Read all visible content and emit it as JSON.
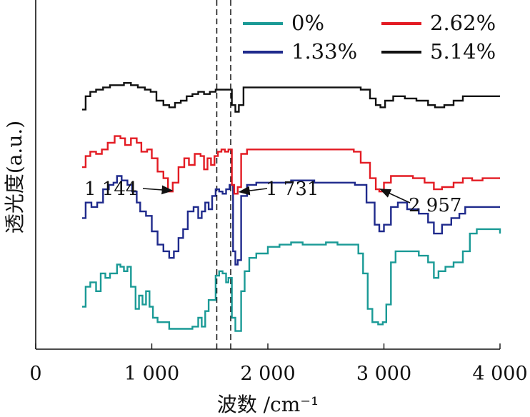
{
  "chart_data": {
    "type": "line",
    "title": "",
    "xlabel": "波数 /cm⁻¹",
    "ylabel": "透光度(a.u.)",
    "xlim": [
      0,
      4000
    ],
    "x_ticks": [
      0,
      1000,
      2000,
      3000,
      4000
    ],
    "x_tick_labels": [
      "0",
      "1 000",
      "2 000",
      "3 000",
      "4 000"
    ],
    "grid": false,
    "legend_position": "top",
    "reference_lines": [
      1560,
      1680
    ],
    "series": [
      {
        "name": "0%",
        "color": "#1a9a96",
        "offset": 0,
        "points": [
          [
            400,
            0.15
          ],
          [
            430,
            0.24
          ],
          [
            470,
            0.26
          ],
          [
            520,
            0.22
          ],
          [
            560,
            0.3
          ],
          [
            600,
            0.28
          ],
          [
            640,
            0.3
          ],
          [
            700,
            0.34
          ],
          [
            730,
            0.33
          ],
          [
            760,
            0.31
          ],
          [
            790,
            0.33
          ],
          [
            820,
            0.24
          ],
          [
            860,
            0.14
          ],
          [
            890,
            0.2
          ],
          [
            920,
            0.16
          ],
          [
            950,
            0.22
          ],
          [
            980,
            0.15
          ],
          [
            1010,
            0.1
          ],
          [
            1050,
            0.08
          ],
          [
            1100,
            0.08
          ],
          [
            1150,
            0.05
          ],
          [
            1200,
            0.05
          ],
          [
            1250,
            0.05
          ],
          [
            1300,
            0.05
          ],
          [
            1350,
            0.06
          ],
          [
            1400,
            0.1
          ],
          [
            1430,
            0.06
          ],
          [
            1460,
            0.13
          ],
          [
            1490,
            0.18
          ],
          [
            1520,
            0.18
          ],
          [
            1550,
            0.29
          ],
          [
            1580,
            0.31
          ],
          [
            1610,
            0.3
          ],
          [
            1640,
            0.26
          ],
          [
            1660,
            0.28
          ],
          [
            1690,
            0.1
          ],
          [
            1720,
            0.04
          ],
          [
            1740,
            0.04
          ],
          [
            1770,
            0.22
          ],
          [
            1800,
            0.31
          ],
          [
            1840,
            0.37
          ],
          [
            1900,
            0.39
          ],
          [
            2000,
            0.42
          ],
          [
            2100,
            0.43
          ],
          [
            2200,
            0.44
          ],
          [
            2300,
            0.43
          ],
          [
            2400,
            0.43
          ],
          [
            2500,
            0.44
          ],
          [
            2600,
            0.43
          ],
          [
            2700,
            0.43
          ],
          [
            2780,
            0.39
          ],
          [
            2820,
            0.3
          ],
          [
            2860,
            0.14
          ],
          [
            2900,
            0.08
          ],
          [
            2950,
            0.07
          ],
          [
            2990,
            0.08
          ],
          [
            3020,
            0.16
          ],
          [
            3060,
            0.35
          ],
          [
            3100,
            0.4
          ],
          [
            3200,
            0.4
          ],
          [
            3300,
            0.38
          ],
          [
            3380,
            0.35
          ],
          [
            3430,
            0.28
          ],
          [
            3470,
            0.31
          ],
          [
            3530,
            0.33
          ],
          [
            3600,
            0.35
          ],
          [
            3680,
            0.4
          ],
          [
            3740,
            0.48
          ],
          [
            3800,
            0.5
          ],
          [
            3900,
            0.5
          ],
          [
            4000,
            0.48
          ]
        ]
      },
      {
        "name": "1.33%",
        "color": "#1f2a8c",
        "offset": 1,
        "points": [
          [
            400,
            0.55
          ],
          [
            430,
            0.62
          ],
          [
            480,
            0.6
          ],
          [
            530,
            0.62
          ],
          [
            580,
            0.68
          ],
          [
            630,
            0.7
          ],
          [
            670,
            0.71
          ],
          [
            700,
            0.74
          ],
          [
            740,
            0.72
          ],
          [
            790,
            0.7
          ],
          [
            830,
            0.67
          ],
          [
            870,
            0.62
          ],
          [
            900,
            0.58
          ],
          [
            950,
            0.56
          ],
          [
            1000,
            0.49
          ],
          [
            1050,
            0.43
          ],
          [
            1100,
            0.4
          ],
          [
            1150,
            0.37
          ],
          [
            1190,
            0.4
          ],
          [
            1230,
            0.46
          ],
          [
            1270,
            0.5
          ],
          [
            1310,
            0.58
          ],
          [
            1360,
            0.6
          ],
          [
            1400,
            0.55
          ],
          [
            1430,
            0.58
          ],
          [
            1460,
            0.62
          ],
          [
            1490,
            0.59
          ],
          [
            1520,
            0.65
          ],
          [
            1550,
            0.68
          ],
          [
            1580,
            0.67
          ],
          [
            1610,
            0.66
          ],
          [
            1640,
            0.68
          ],
          [
            1670,
            0.7
          ],
          [
            1700,
            0.4
          ],
          [
            1720,
            0.34
          ],
          [
            1740,
            0.36
          ],
          [
            1770,
            0.65
          ],
          [
            1820,
            0.7
          ],
          [
            1900,
            0.71
          ],
          [
            2000,
            0.71
          ],
          [
            2200,
            0.72
          ],
          [
            2400,
            0.71
          ],
          [
            2600,
            0.71
          ],
          [
            2750,
            0.7
          ],
          [
            2850,
            0.62
          ],
          [
            2920,
            0.52
          ],
          [
            2960,
            0.49
          ],
          [
            3000,
            0.52
          ],
          [
            3060,
            0.6
          ],
          [
            3120,
            0.62
          ],
          [
            3200,
            0.59
          ],
          [
            3300,
            0.57
          ],
          [
            3380,
            0.53
          ],
          [
            3430,
            0.48
          ],
          [
            3500,
            0.52
          ],
          [
            3580,
            0.55
          ],
          [
            3650,
            0.57
          ],
          [
            3700,
            0.6
          ],
          [
            3800,
            0.6
          ],
          [
            3900,
            0.6
          ],
          [
            4000,
            0.6
          ]
        ]
      },
      {
        "name": "2.62%",
        "color": "#e31b23",
        "offset": 2,
        "points": [
          [
            400,
            0.78
          ],
          [
            430,
            0.83
          ],
          [
            470,
            0.85
          ],
          [
            520,
            0.84
          ],
          [
            570,
            0.86
          ],
          [
            620,
            0.89
          ],
          [
            680,
            0.92
          ],
          [
            730,
            0.91
          ],
          [
            770,
            0.88
          ],
          [
            820,
            0.91
          ],
          [
            870,
            0.89
          ],
          [
            910,
            0.85
          ],
          [
            960,
            0.86
          ],
          [
            1000,
            0.82
          ],
          [
            1050,
            0.76
          ],
          [
            1100,
            0.73
          ],
          [
            1140,
            0.67
          ],
          [
            1180,
            0.71
          ],
          [
            1230,
            0.78
          ],
          [
            1280,
            0.82
          ],
          [
            1320,
            0.79
          ],
          [
            1370,
            0.84
          ],
          [
            1420,
            0.83
          ],
          [
            1450,
            0.77
          ],
          [
            1480,
            0.82
          ],
          [
            1510,
            0.79
          ],
          [
            1540,
            0.83
          ],
          [
            1570,
            0.85
          ],
          [
            1600,
            0.86
          ],
          [
            1630,
            0.85
          ],
          [
            1660,
            0.86
          ],
          [
            1690,
            0.7
          ],
          [
            1710,
            0.66
          ],
          [
            1740,
            0.69
          ],
          [
            1770,
            0.84
          ],
          [
            1820,
            0.86
          ],
          [
            1900,
            0.86
          ],
          [
            2000,
            0.86
          ],
          [
            2200,
            0.86
          ],
          [
            2400,
            0.86
          ],
          [
            2600,
            0.86
          ],
          [
            2740,
            0.85
          ],
          [
            2800,
            0.8
          ],
          [
            2880,
            0.73
          ],
          [
            2930,
            0.68
          ],
          [
            2960,
            0.67
          ],
          [
            3000,
            0.71
          ],
          [
            3060,
            0.74
          ],
          [
            3150,
            0.74
          ],
          [
            3250,
            0.73
          ],
          [
            3350,
            0.71
          ],
          [
            3430,
            0.68
          ],
          [
            3500,
            0.69
          ],
          [
            3600,
            0.71
          ],
          [
            3680,
            0.73
          ],
          [
            3760,
            0.72
          ],
          [
            3850,
            0.73
          ],
          [
            4000,
            0.73
          ]
        ]
      },
      {
        "name": "5.14%",
        "color": "#111111",
        "offset": 3,
        "points": [
          [
            400,
            1.04
          ],
          [
            430,
            1.1
          ],
          [
            470,
            1.12
          ],
          [
            520,
            1.13
          ],
          [
            580,
            1.14
          ],
          [
            640,
            1.15
          ],
          [
            700,
            1.15
          ],
          [
            760,
            1.16
          ],
          [
            820,
            1.15
          ],
          [
            880,
            1.14
          ],
          [
            940,
            1.13
          ],
          [
            990,
            1.12
          ],
          [
            1040,
            1.08
          ],
          [
            1100,
            1.06
          ],
          [
            1150,
            1.05
          ],
          [
            1200,
            1.07
          ],
          [
            1250,
            1.08
          ],
          [
            1300,
            1.1
          ],
          [
            1350,
            1.11
          ],
          [
            1400,
            1.12
          ],
          [
            1450,
            1.11
          ],
          [
            1500,
            1.12
          ],
          [
            1550,
            1.13
          ],
          [
            1600,
            1.13
          ],
          [
            1650,
            1.13
          ],
          [
            1690,
            1.06
          ],
          [
            1720,
            1.03
          ],
          [
            1750,
            1.06
          ],
          [
            1790,
            1.14
          ],
          [
            1850,
            1.14
          ],
          [
            1950,
            1.14
          ],
          [
            2100,
            1.14
          ],
          [
            2300,
            1.14
          ],
          [
            2500,
            1.14
          ],
          [
            2700,
            1.14
          ],
          [
            2800,
            1.13
          ],
          [
            2880,
            1.09
          ],
          [
            2930,
            1.06
          ],
          [
            2970,
            1.05
          ],
          [
            3010,
            1.08
          ],
          [
            3080,
            1.1
          ],
          [
            3180,
            1.09
          ],
          [
            3280,
            1.08
          ],
          [
            3380,
            1.06
          ],
          [
            3440,
            1.05
          ],
          [
            3520,
            1.06
          ],
          [
            3600,
            1.08
          ],
          [
            3680,
            1.1
          ],
          [
            3800,
            1.1
          ],
          [
            3900,
            1.1
          ],
          [
            4000,
            1.1
          ]
        ]
      }
    ],
    "annotations": [
      {
        "text": "1 144",
        "x": 1144,
        "series": "2.62%"
      },
      {
        "text": "1 731",
        "x": 1731,
        "series": "2.62%"
      },
      {
        "text": "2 957",
        "x": 2957,
        "series": "2.62%"
      }
    ]
  }
}
